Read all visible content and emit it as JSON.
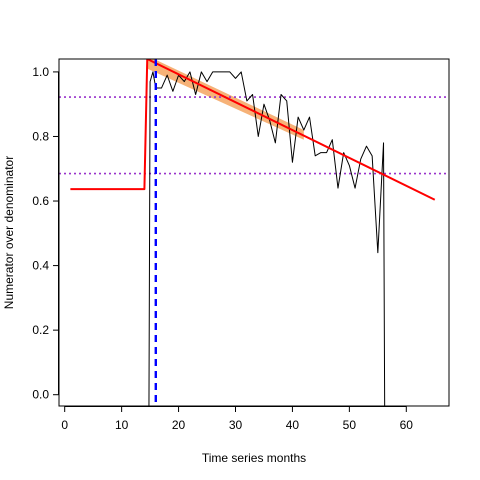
{
  "chart_data": {
    "type": "line",
    "title": "",
    "xlabel": "Time series months",
    "ylabel": "Numerator over denominator",
    "xlim": [
      -1,
      67.5
    ],
    "ylim": [
      -0.035,
      1.04
    ],
    "grid": false,
    "legend": "none",
    "x_ticks": [
      0,
      10,
      20,
      30,
      40,
      50,
      60
    ],
    "y_ticks": [
      0.0,
      0.2,
      0.4,
      0.6,
      0.8,
      1.0
    ],
    "y_tick_labels": [
      "0.0",
      "0.2",
      "0.4",
      "0.6",
      "0.8",
      "1.0"
    ],
    "series": [
      {
        "role": "observed",
        "color": "#000000",
        "x": [
          14.8,
          15.0,
          15.5,
          16.0,
          17.0,
          18.0,
          19.0,
          20.0,
          21.0,
          22.0,
          23.0,
          24.0,
          25.0,
          26.0,
          27.0,
          28.0,
          29.0,
          30.0,
          31.0,
          32.0,
          33.0,
          34.0,
          35.0,
          36.0,
          37.0,
          38.0,
          39.0,
          40.0,
          41.0,
          42.0,
          43.0,
          44.0,
          45.0,
          46.0,
          47.0,
          48.0,
          49.0,
          50.0,
          51.0,
          52.0,
          53.0,
          54.0,
          55.0,
          56.0,
          56.2
        ],
        "y": [
          -0.035,
          0.97,
          1.0,
          0.95,
          0.95,
          0.99,
          0.94,
          0.99,
          0.97,
          1.0,
          0.93,
          1.0,
          0.97,
          1.0,
          1.0,
          1.0,
          1.0,
          0.98,
          1.0,
          0.91,
          0.93,
          0.8,
          0.9,
          0.85,
          0.78,
          0.93,
          0.91,
          0.72,
          0.86,
          0.82,
          0.86,
          0.74,
          0.75,
          0.75,
          0.79,
          0.64,
          0.75,
          0.71,
          0.64,
          0.73,
          0.77,
          0.74,
          0.44,
          0.78,
          -0.035
        ]
      },
      {
        "role": "fitted",
        "color": "#ff0000",
        "x": [
          1,
          14,
          14.5,
          65
        ],
        "y": [
          0.637,
          0.637,
          1.04,
          0.604
        ]
      }
    ],
    "confidence_band": {
      "color": "#f4a460",
      "x": [
        14.5,
        42
      ],
      "upper": [
        1.05,
        0.82
      ],
      "lower": [
        1.01,
        0.79
      ]
    },
    "vertical_line": {
      "x": 16,
      "color": "#0000ff",
      "style": "dashed"
    },
    "horizontal_lines": [
      {
        "y": 0.922,
        "color": "#9932cc",
        "style": "dotted"
      },
      {
        "y": 0.685,
        "color": "#9932cc",
        "style": "dotted"
      }
    ]
  }
}
